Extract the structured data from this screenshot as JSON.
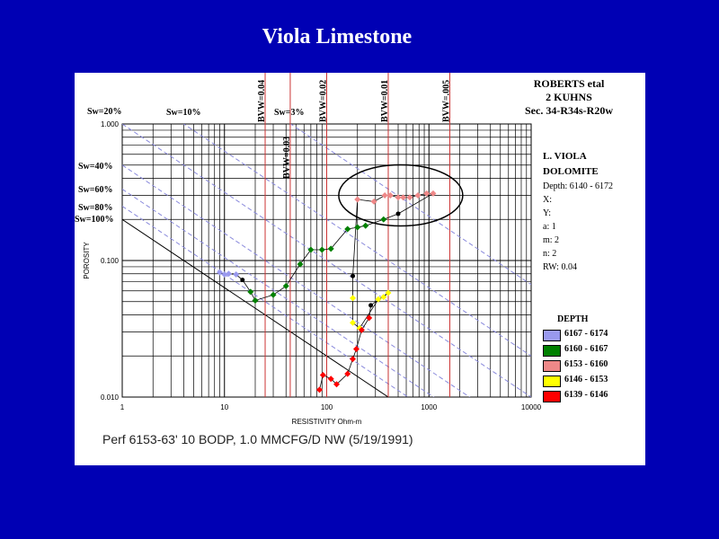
{
  "slide": {
    "title": "Viola Limestone"
  },
  "well": {
    "line1": "ROBERTS etal",
    "line2": "2 KUHNS",
    "line3": "Sec. 34-R34s-R20w"
  },
  "params": {
    "formation1": "L. VIOLA",
    "formation2": "DOLOMITE",
    "depth": "Depth: 6140 - 6172",
    "x": "X:",
    "y": "Y:",
    "a": "a: 1",
    "m": "m: 2",
    "n": "n: 2",
    "rw": "RW: 0.04"
  },
  "footer": "Perf 6153-63' 10 BODP, 1.0 MMCFG/D NW (5/19/1991)",
  "colors": {
    "background": "#0000b4",
    "sw_lines": "#8a8adc",
    "bvw_lines": "#cc3333",
    "connector": "#000000"
  },
  "chart_data": {
    "type": "scatter",
    "xscale": "log",
    "yscale": "log",
    "xlim": [
      1,
      10000
    ],
    "ylim": [
      0.01,
      1.0
    ],
    "grid": true,
    "xlabel": "RESISTIVITY Ohm-m",
    "ylabel": "POROSITY",
    "x_ticks": [
      "1",
      "10",
      "100",
      "1000",
      "10000"
    ],
    "y_ticks": [
      "1.000",
      "0.100",
      "0.010"
    ],
    "sw_lines": [
      {
        "label": "Sw=100%",
        "sw": 1.0
      },
      {
        "label": "Sw=80%",
        "sw": 0.8
      },
      {
        "label": "Sw=60%",
        "sw": 0.6
      },
      {
        "label": "Sw=40%",
        "sw": 0.4
      },
      {
        "label": "Sw=20%",
        "sw": 0.2
      },
      {
        "label": "Sw=10%",
        "sw": 0.1
      },
      {
        "label": "Sw=3%",
        "sw": 0.03
      }
    ],
    "bvw_lines": [
      {
        "label": "BVW=0.04",
        "resistivity": 25
      },
      {
        "label": "BVW=0.03",
        "resistivity": 44
      },
      {
        "label": "BVW=0.02",
        "resistivity": 100
      },
      {
        "label": "BVW=0.01",
        "resistivity": 400
      },
      {
        "label": "BVW=.005",
        "resistivity": 1600
      }
    ],
    "ellipse": {
      "center": [
        530,
        0.3
      ],
      "note": "highlighted pay zone"
    },
    "legend_title": "DEPTH",
    "series": [
      {
        "name": "6167 - 6174",
        "color": "#9999ee",
        "points": [
          [
            9,
            0.082
          ],
          [
            10,
            0.079
          ],
          [
            11,
            0.08
          ],
          [
            13,
            0.079
          ]
        ]
      },
      {
        "name": "6160 - 6167",
        "color": "#008000",
        "points": [
          [
            18,
            0.059
          ],
          [
            20,
            0.051
          ],
          [
            30,
            0.056
          ],
          [
            40,
            0.065
          ],
          [
            55,
            0.094
          ],
          [
            70,
            0.12
          ],
          [
            90,
            0.12
          ],
          [
            110,
            0.122
          ],
          [
            160,
            0.17
          ],
          [
            200,
            0.175
          ],
          [
            240,
            0.18
          ],
          [
            360,
            0.2
          ]
        ]
      },
      {
        "name": "6153 - 6160",
        "color": "#ee8888",
        "points": [
          [
            200,
            0.28
          ],
          [
            290,
            0.27
          ],
          [
            370,
            0.3
          ],
          [
            420,
            0.3
          ],
          [
            500,
            0.29
          ],
          [
            560,
            0.29
          ],
          [
            650,
            0.29
          ],
          [
            780,
            0.3
          ],
          [
            950,
            0.31
          ],
          [
            1100,
            0.31
          ]
        ]
      },
      {
        "name": "6146 - 6153",
        "color": "#ffff00",
        "points": [
          [
            180,
            0.053
          ],
          [
            180,
            0.035
          ],
          [
            210,
            0.032
          ],
          [
            320,
            0.052
          ],
          [
            360,
            0.054
          ],
          [
            400,
            0.058
          ]
        ]
      },
      {
        "name": "6139 - 6146",
        "color": "#ff0000",
        "points": [
          [
            85,
            0.0113
          ],
          [
            92,
            0.0145
          ],
          [
            110,
            0.0136
          ],
          [
            125,
            0.0124
          ],
          [
            160,
            0.0148
          ],
          [
            180,
            0.019
          ],
          [
            195,
            0.0225
          ],
          [
            220,
            0.031
          ],
          [
            260,
            0.038
          ]
        ]
      }
    ],
    "other_points": [
      {
        "color": "#000000",
        "points": [
          [
            15,
            0.072
          ],
          [
            180,
            0.077
          ],
          [
            270,
            0.047
          ],
          [
            500,
            0.22
          ]
        ]
      }
    ]
  }
}
